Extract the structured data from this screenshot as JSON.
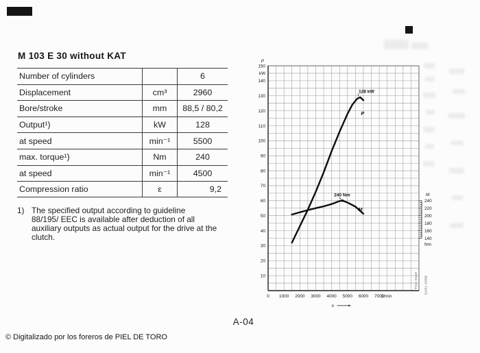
{
  "page": {
    "title": "M 103 E 30 without KAT",
    "page_number": "A-04",
    "watermark": "© Digitalizado por los foreros de PIEL DE TORO"
  },
  "spec_table": {
    "rows": [
      {
        "label": "Number of cylinders",
        "unit": "",
        "value": "6"
      },
      {
        "label": "Displacement",
        "unit": "cm³",
        "value": "2960"
      },
      {
        "label": "Bore/stroke",
        "unit": "mm",
        "value": "88,5 / 80,2"
      },
      {
        "label": "Output¹)",
        "unit": "kW",
        "value": "128"
      },
      {
        "label": "at speed",
        "unit": "min⁻¹",
        "value": "5500"
      },
      {
        "label": "max. torque¹)",
        "unit": "Nm",
        "value": "240"
      },
      {
        "label": "at speed",
        "unit": "min⁻¹",
        "value": "4500"
      },
      {
        "label": "Compression ratio",
        "unit": "ε",
        "value": "9,2"
      }
    ]
  },
  "footnote": {
    "marker": "1)",
    "lines": [
      "The specified output according to guideline",
      "88/195/ EEC is available after deduction of all",
      "auxiliary outputs as actual output for the drive at the",
      "clutch."
    ]
  },
  "chart_data": {
    "type": "line",
    "title": "",
    "xlabel": "n",
    "x_axis": {
      "label": "n",
      "unit": "1/min",
      "ticks": [
        0,
        1000,
        2000,
        3000,
        4000,
        5000,
        6000,
        7000
      ],
      "grid_max": 9500,
      "minor_step": 500
    },
    "y_axis_left": {
      "label": "P",
      "unit": "kW",
      "min": 0,
      "max": 150,
      "ticks": [
        150,
        140,
        130,
        120,
        110,
        100,
        90,
        80,
        70,
        60,
        50,
        40,
        30,
        20,
        10
      ],
      "minor_step": 5
    },
    "y_axis_right": {
      "label": "M",
      "unit": "Nm",
      "ticks": [
        240,
        220,
        200,
        180,
        160,
        140
      ],
      "minor_step": 5,
      "nm_per_kw_unit": 4
    },
    "series": [
      {
        "name": "P",
        "unit": "kW",
        "peak_label": "128 kW",
        "label_at": [
          5950,
          117
        ],
        "points": [
          [
            1500,
            32
          ],
          [
            2000,
            43
          ],
          [
            2500,
            54
          ],
          [
            3000,
            66
          ],
          [
            3500,
            79
          ],
          [
            4000,
            93
          ],
          [
            4500,
            106
          ],
          [
            5000,
            118
          ],
          [
            5300,
            124
          ],
          [
            5600,
            128
          ],
          [
            5800,
            129
          ],
          [
            6000,
            127
          ]
        ]
      },
      {
        "name": "M",
        "unit": "Nm",
        "peak_label": "240 Nm",
        "label_at": [
          5800,
          212
        ],
        "points": [
          [
            1500,
            203
          ],
          [
            2000,
            209
          ],
          [
            2500,
            215
          ],
          [
            3000,
            220
          ],
          [
            3500,
            225
          ],
          [
            4000,
            231
          ],
          [
            4500,
            239
          ],
          [
            4700,
            240
          ],
          [
            5000,
            235
          ],
          [
            5500,
            224
          ],
          [
            6000,
            205
          ]
        ]
      }
    ],
    "stamps": [
      "TGA 0440",
      "G251-0058"
    ],
    "legend_position": "none",
    "grid": true
  }
}
